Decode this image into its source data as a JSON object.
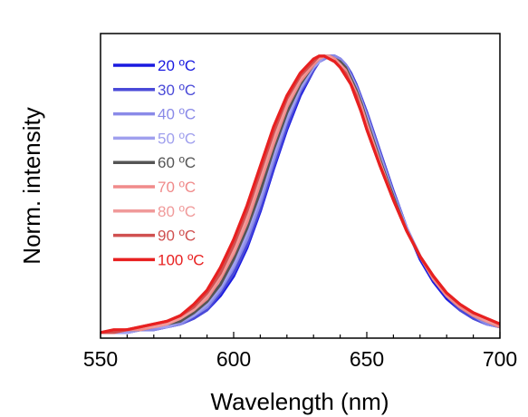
{
  "chart_data": {
    "type": "line",
    "xlabel": "Wavelength (nm)",
    "ylabel": "Norm. intensity",
    "xlim": [
      550,
      700
    ],
    "ylim": [
      0,
      1.08
    ],
    "xticks": [
      550,
      600,
      650,
      700
    ],
    "yticks_shown": false,
    "grid": false,
    "legend_position": "top-left",
    "x": [
      550,
      555,
      560,
      565,
      570,
      575,
      580,
      585,
      590,
      595,
      600,
      605,
      610,
      615,
      620,
      625,
      630,
      632,
      634,
      636,
      638,
      640,
      642,
      644,
      646,
      648,
      650,
      655,
      660,
      665,
      670,
      675,
      680,
      685,
      690,
      695,
      700
    ],
    "series": [
      {
        "name": "20 ºC",
        "color": "#1a1ae0",
        "values": [
          0.02,
          0.02,
          0.02,
          0.03,
          0.03,
          0.04,
          0.05,
          0.07,
          0.1,
          0.15,
          0.22,
          0.32,
          0.45,
          0.6,
          0.74,
          0.86,
          0.95,
          0.98,
          0.99,
          1.0,
          1.0,
          0.99,
          0.97,
          0.94,
          0.9,
          0.85,
          0.8,
          0.66,
          0.52,
          0.39,
          0.28,
          0.2,
          0.14,
          0.1,
          0.07,
          0.05,
          0.04
        ]
      },
      {
        "name": "30 ºC",
        "color": "#4a4ad8",
        "values": [
          0.02,
          0.02,
          0.02,
          0.03,
          0.03,
          0.04,
          0.05,
          0.07,
          0.1,
          0.16,
          0.23,
          0.33,
          0.46,
          0.61,
          0.75,
          0.87,
          0.95,
          0.98,
          0.99,
          1.0,
          1.0,
          0.99,
          0.97,
          0.94,
          0.9,
          0.85,
          0.8,
          0.66,
          0.52,
          0.39,
          0.29,
          0.21,
          0.15,
          0.1,
          0.07,
          0.05,
          0.04
        ]
      },
      {
        "name": "40 ºC",
        "color": "#8a8ae8",
        "values": [
          0.02,
          0.02,
          0.02,
          0.03,
          0.03,
          0.04,
          0.05,
          0.08,
          0.11,
          0.17,
          0.25,
          0.35,
          0.48,
          0.63,
          0.77,
          0.88,
          0.96,
          0.98,
          0.99,
          1.0,
          1.0,
          0.99,
          0.97,
          0.93,
          0.89,
          0.84,
          0.79,
          0.65,
          0.51,
          0.39,
          0.29,
          0.21,
          0.15,
          0.11,
          0.08,
          0.05,
          0.04
        ]
      },
      {
        "name": "50 ºC",
        "color": "#a0a0ee",
        "values": [
          0.02,
          0.02,
          0.02,
          0.03,
          0.04,
          0.04,
          0.06,
          0.08,
          0.12,
          0.18,
          0.26,
          0.37,
          0.5,
          0.65,
          0.78,
          0.89,
          0.96,
          0.98,
          1.0,
          1.0,
          0.99,
          0.98,
          0.96,
          0.93,
          0.89,
          0.84,
          0.78,
          0.64,
          0.51,
          0.39,
          0.29,
          0.21,
          0.15,
          0.11,
          0.08,
          0.06,
          0.04
        ]
      },
      {
        "name": "60 ºC",
        "color": "#555555",
        "values": [
          0.02,
          0.02,
          0.03,
          0.03,
          0.04,
          0.05,
          0.06,
          0.09,
          0.13,
          0.19,
          0.28,
          0.39,
          0.52,
          0.67,
          0.8,
          0.9,
          0.97,
          0.99,
          1.0,
          1.0,
          0.99,
          0.98,
          0.96,
          0.92,
          0.88,
          0.83,
          0.77,
          0.63,
          0.5,
          0.38,
          0.29,
          0.21,
          0.15,
          0.11,
          0.08,
          0.06,
          0.04
        ]
      },
      {
        "name": "70 ºC",
        "color": "#f08a8a",
        "values": [
          0.02,
          0.02,
          0.03,
          0.03,
          0.04,
          0.05,
          0.07,
          0.1,
          0.14,
          0.21,
          0.3,
          0.41,
          0.55,
          0.69,
          0.82,
          0.91,
          0.97,
          0.99,
          1.0,
          1.0,
          0.99,
          0.97,
          0.95,
          0.91,
          0.87,
          0.82,
          0.76,
          0.62,
          0.49,
          0.38,
          0.29,
          0.21,
          0.15,
          0.11,
          0.08,
          0.06,
          0.04
        ]
      },
      {
        "name": "80 ºC",
        "color": "#f09a9a",
        "values": [
          0.02,
          0.02,
          0.03,
          0.04,
          0.04,
          0.05,
          0.07,
          0.1,
          0.15,
          0.22,
          0.31,
          0.43,
          0.57,
          0.71,
          0.83,
          0.92,
          0.98,
          0.99,
          1.0,
          1.0,
          0.98,
          0.97,
          0.94,
          0.91,
          0.86,
          0.81,
          0.75,
          0.62,
          0.49,
          0.38,
          0.29,
          0.22,
          0.16,
          0.12,
          0.09,
          0.06,
          0.05
        ]
      },
      {
        "name": "90 ºC",
        "color": "#d05050",
        "values": [
          0.02,
          0.02,
          0.03,
          0.04,
          0.05,
          0.06,
          0.08,
          0.11,
          0.16,
          0.23,
          0.33,
          0.45,
          0.59,
          0.73,
          0.85,
          0.93,
          0.98,
          1.0,
          1.0,
          0.99,
          0.98,
          0.96,
          0.94,
          0.9,
          0.86,
          0.8,
          0.74,
          0.61,
          0.49,
          0.38,
          0.29,
          0.22,
          0.16,
          0.12,
          0.09,
          0.07,
          0.05
        ]
      },
      {
        "name": "100 ºC",
        "color": "#e82020",
        "values": [
          0.02,
          0.03,
          0.03,
          0.04,
          0.05,
          0.06,
          0.08,
          0.12,
          0.17,
          0.25,
          0.35,
          0.47,
          0.61,
          0.75,
          0.86,
          0.94,
          0.99,
          1.0,
          1.0,
          0.99,
          0.98,
          0.96,
          0.93,
          0.9,
          0.85,
          0.8,
          0.74,
          0.61,
          0.49,
          0.38,
          0.29,
          0.22,
          0.16,
          0.12,
          0.09,
          0.07,
          0.05
        ]
      }
    ]
  }
}
